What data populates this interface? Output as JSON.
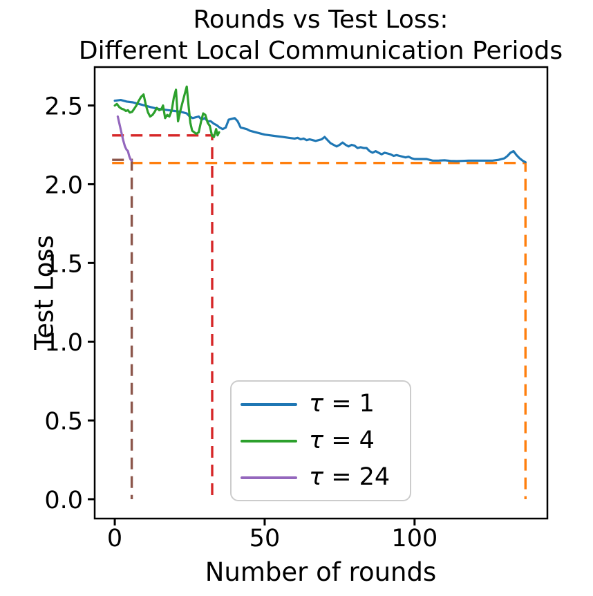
{
  "title": {
    "line1": "Rounds vs Test Loss:",
    "line2": "Different Local Communication Periods"
  },
  "axes": {
    "xlabel": "Number of rounds",
    "ylabel": "Test Loss"
  },
  "colors": {
    "tau1_line": "#1f77b4",
    "tau4_line": "#2ca02c",
    "tau24_line": "#9467bd",
    "tau1_target_dash": "#ff7f0e",
    "tau4_target_dash": "#d62728",
    "tau24_target_dash": "#8c564b",
    "spine": "#000000",
    "legend_border": "#cccccc",
    "text": "#000000"
  },
  "legend": {
    "items": [
      {
        "symbol": "τ",
        "separator": " = ",
        "value": "1",
        "color": "#1f77b4"
      },
      {
        "symbol": "τ",
        "separator": " = ",
        "value": "4",
        "color": "#2ca02c"
      },
      {
        "symbol": "τ",
        "separator": " = ",
        "value": "24",
        "color": "#9467bd"
      }
    ]
  },
  "chart_data": {
    "type": "line",
    "title": "Rounds vs Test Loss:\n Different Local Communication Periods",
    "xlabel": "Number of rounds",
    "ylabel": "Test Loss",
    "xlim": [
      -6.7,
      144.3
    ],
    "ylim": [
      -0.123,
      2.744
    ],
    "grid": false,
    "legend_position": "lower center",
    "x_ticks": [
      {
        "value": 0,
        "label": "0"
      },
      {
        "value": 50,
        "label": "50"
      },
      {
        "value": 100,
        "label": "100"
      }
    ],
    "y_ticks": [
      {
        "value": 0.0,
        "label": "0.0"
      },
      {
        "value": 0.5,
        "label": "0.5"
      },
      {
        "value": 1.0,
        "label": "1.0"
      },
      {
        "value": 1.5,
        "label": "1.5"
      },
      {
        "value": 2.0,
        "label": "2.0"
      },
      {
        "value": 2.5,
        "label": "2.5"
      }
    ],
    "series": [
      {
        "name": "τ = 1",
        "color": "#1f77b4",
        "style": "solid",
        "x": [
          0,
          2,
          4,
          6,
          8,
          10,
          12,
          14,
          16,
          18,
          20,
          22,
          24,
          25,
          26,
          28,
          29,
          30,
          31,
          32,
          33,
          34,
          35,
          36,
          37,
          38,
          39,
          40,
          41,
          42,
          43,
          44,
          45,
          46,
          47,
          48,
          49,
          50,
          52,
          54,
          56,
          58,
          60,
          61,
          62,
          63,
          64,
          65,
          66,
          67,
          68,
          69,
          70,
          71,
          72,
          73,
          74,
          75,
          76,
          77,
          78,
          79,
          80,
          81,
          82,
          83,
          84,
          85,
          86,
          87,
          88,
          89,
          90,
          91,
          92,
          93,
          94,
          95,
          96,
          97,
          98,
          99,
          100,
          102,
          104,
          106,
          108,
          110,
          112,
          114,
          116,
          118,
          120,
          122,
          124,
          126,
          128,
          129,
          130,
          131,
          132,
          133,
          134,
          135,
          136,
          137
        ],
        "y": [
          2.53,
          2.535,
          2.525,
          2.52,
          2.51,
          2.5,
          2.49,
          2.48,
          2.475,
          2.47,
          2.465,
          2.46,
          2.45,
          2.43,
          2.42,
          2.43,
          2.41,
          2.42,
          2.4,
          2.4,
          2.385,
          2.375,
          2.36,
          2.35,
          2.36,
          2.41,
          2.415,
          2.42,
          2.4,
          2.36,
          2.355,
          2.35,
          2.34,
          2.335,
          2.33,
          2.325,
          2.32,
          2.315,
          2.31,
          2.305,
          2.3,
          2.295,
          2.29,
          2.295,
          2.285,
          2.29,
          2.28,
          2.285,
          2.28,
          2.275,
          2.28,
          2.285,
          2.3,
          2.28,
          2.26,
          2.25,
          2.24,
          2.25,
          2.265,
          2.25,
          2.24,
          2.25,
          2.245,
          2.23,
          2.235,
          2.23,
          2.23,
          2.21,
          2.2,
          2.21,
          2.2,
          2.19,
          2.2,
          2.195,
          2.19,
          2.18,
          2.185,
          2.18,
          2.175,
          2.17,
          2.175,
          2.165,
          2.16,
          2.16,
          2.16,
          2.15,
          2.15,
          2.152,
          2.148,
          2.147,
          2.148,
          2.15,
          2.15,
          2.15,
          2.15,
          2.15,
          2.155,
          2.16,
          2.165,
          2.18,
          2.2,
          2.21,
          2.185,
          2.165,
          2.15,
          2.14
        ]
      },
      {
        "name": "τ = 4",
        "color": "#2ca02c",
        "style": "solid",
        "x": [
          0,
          0.7,
          1.5,
          2.2,
          3,
          3.7,
          4.4,
          5,
          5.8,
          6.5,
          7.2,
          8,
          8.8,
          9.6,
          10.4,
          11.1,
          11.8,
          12.6,
          13.3,
          14,
          14.8,
          15.5,
          16.1,
          16.8,
          17.5,
          18.2,
          19,
          19.7,
          20.4,
          21.1,
          21.8,
          22.6,
          23.3,
          24,
          24.6,
          25.2,
          25.8,
          26.5,
          27.2,
          28,
          28.8,
          29.5,
          30.2,
          31,
          31.7,
          32.4,
          33.1,
          33.8,
          34.3,
          34.8
        ],
        "y": [
          2.5,
          2.51,
          2.49,
          2.48,
          2.475,
          2.465,
          2.47,
          2.455,
          2.46,
          2.48,
          2.5,
          2.53,
          2.555,
          2.57,
          2.5,
          2.455,
          2.43,
          2.44,
          2.46,
          2.485,
          2.47,
          2.475,
          2.5,
          2.42,
          2.44,
          2.43,
          2.47,
          2.55,
          2.6,
          2.4,
          2.46,
          2.52,
          2.57,
          2.62,
          2.5,
          2.39,
          2.34,
          2.33,
          2.32,
          2.33,
          2.4,
          2.45,
          2.44,
          2.39,
          2.37,
          2.31,
          2.3,
          2.35,
          2.31,
          2.33
        ]
      },
      {
        "name": "τ = 24",
        "color": "#9467bd",
        "style": "solid",
        "x": [
          1,
          1.6,
          2.2,
          2.8,
          3.4,
          3.9,
          4.4,
          4.8,
          5.2,
          5.6
        ],
        "y": [
          2.43,
          2.38,
          2.33,
          2.28,
          2.24,
          2.22,
          2.21,
          2.18,
          2.16,
          2.15
        ]
      }
    ],
    "reference_lines": [
      {
        "name": "tau1-target",
        "color": "#ff7f0e",
        "style": "dashed",
        "points": [
          [
            -0.9,
            2.135
          ],
          [
            137,
            2.135
          ],
          [
            137,
            0
          ]
        ]
      },
      {
        "name": "tau4-target",
        "color": "#d62728",
        "style": "dashed",
        "points": [
          [
            -0.9,
            2.31
          ],
          [
            32.5,
            2.31
          ],
          [
            32.5,
            0
          ]
        ]
      },
      {
        "name": "tau24-target",
        "color": "#8c564b",
        "style": "dashed",
        "points": [
          [
            -0.9,
            2.155
          ],
          [
            5.65,
            2.155
          ],
          [
            5.65,
            0
          ]
        ]
      }
    ]
  }
}
